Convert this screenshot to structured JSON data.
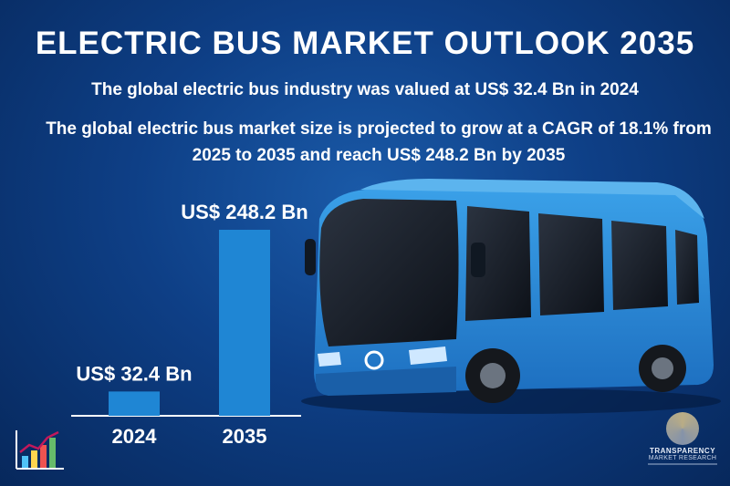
{
  "header": {
    "title": "ELECTRIC BUS MARKET OUTLOOK 2035",
    "subtitle": "The global electric bus industry was valued at US$ 32.4 Bn in 2024",
    "description": "The global electric bus market size is projected to grow at a CAGR of 18.1% from 2025 to 2035 and reach US$ 248.2 Bn by 2035"
  },
  "chart_data": {
    "type": "bar",
    "categories": [
      "2024",
      "2035"
    ],
    "values": [
      32.4,
      248.2
    ],
    "data_labels": [
      "US$ 32.4 Bn",
      "US$ 248.2 Bn"
    ],
    "bar_color": "#1f86d4",
    "title": "",
    "xlabel": "",
    "ylabel": "",
    "grid": false,
    "legend": "none"
  },
  "branding": {
    "left_icon": "bar-chart-trend-icon",
    "right_logo_line1": "TRANSPARENCY",
    "right_logo_line2": "MARKET RESEARCH",
    "accent": "#1f86d4"
  }
}
